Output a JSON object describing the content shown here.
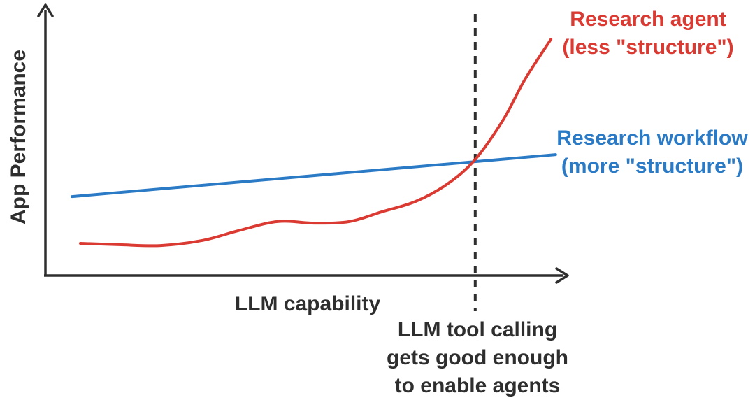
{
  "background": "#ffffff",
  "text_color": "#2e2e2e",
  "chart_data": {
    "type": "line",
    "title": "",
    "xlabel": "LLM capability",
    "ylabel": "App Performance",
    "axis_numeric": false,
    "x_range": [
      0,
      100
    ],
    "y_range": [
      0,
      100
    ],
    "grid": false,
    "legend_position": "inline-right",
    "series": [
      {
        "name": "Research agent",
        "label_lines": [
          "Research agent",
          "(less \"structure\")"
        ],
        "color": "#da3a32",
        "x": [
          6.7,
          14.1,
          22.1,
          30.1,
          36.8,
          44.4,
          51.5,
          58.2,
          64.3,
          70.9,
          77.0,
          82.3,
          87.7,
          91.7,
          96.8
        ],
        "y": [
          12.1,
          11.6,
          11.3,
          13.2,
          16.8,
          20.3,
          19.7,
          20.3,
          23.9,
          27.9,
          34.5,
          43.7,
          58.7,
          73.4,
          88.9
        ]
      },
      {
        "name": "Research workflow",
        "label_lines": [
          "Research workflow",
          "(more \"structure\")"
        ],
        "color": "#2b7ac6",
        "x": [
          5.1,
          97.7
        ],
        "y": [
          29.7,
          45.5
        ]
      }
    ],
    "annotations": [
      {
        "type": "vline",
        "x": 82.3,
        "style": "dashed",
        "color": "#2e2e2e",
        "label_lines": [
          "LLM tool calling",
          "gets good enough",
          "to enable agents"
        ]
      }
    ]
  }
}
